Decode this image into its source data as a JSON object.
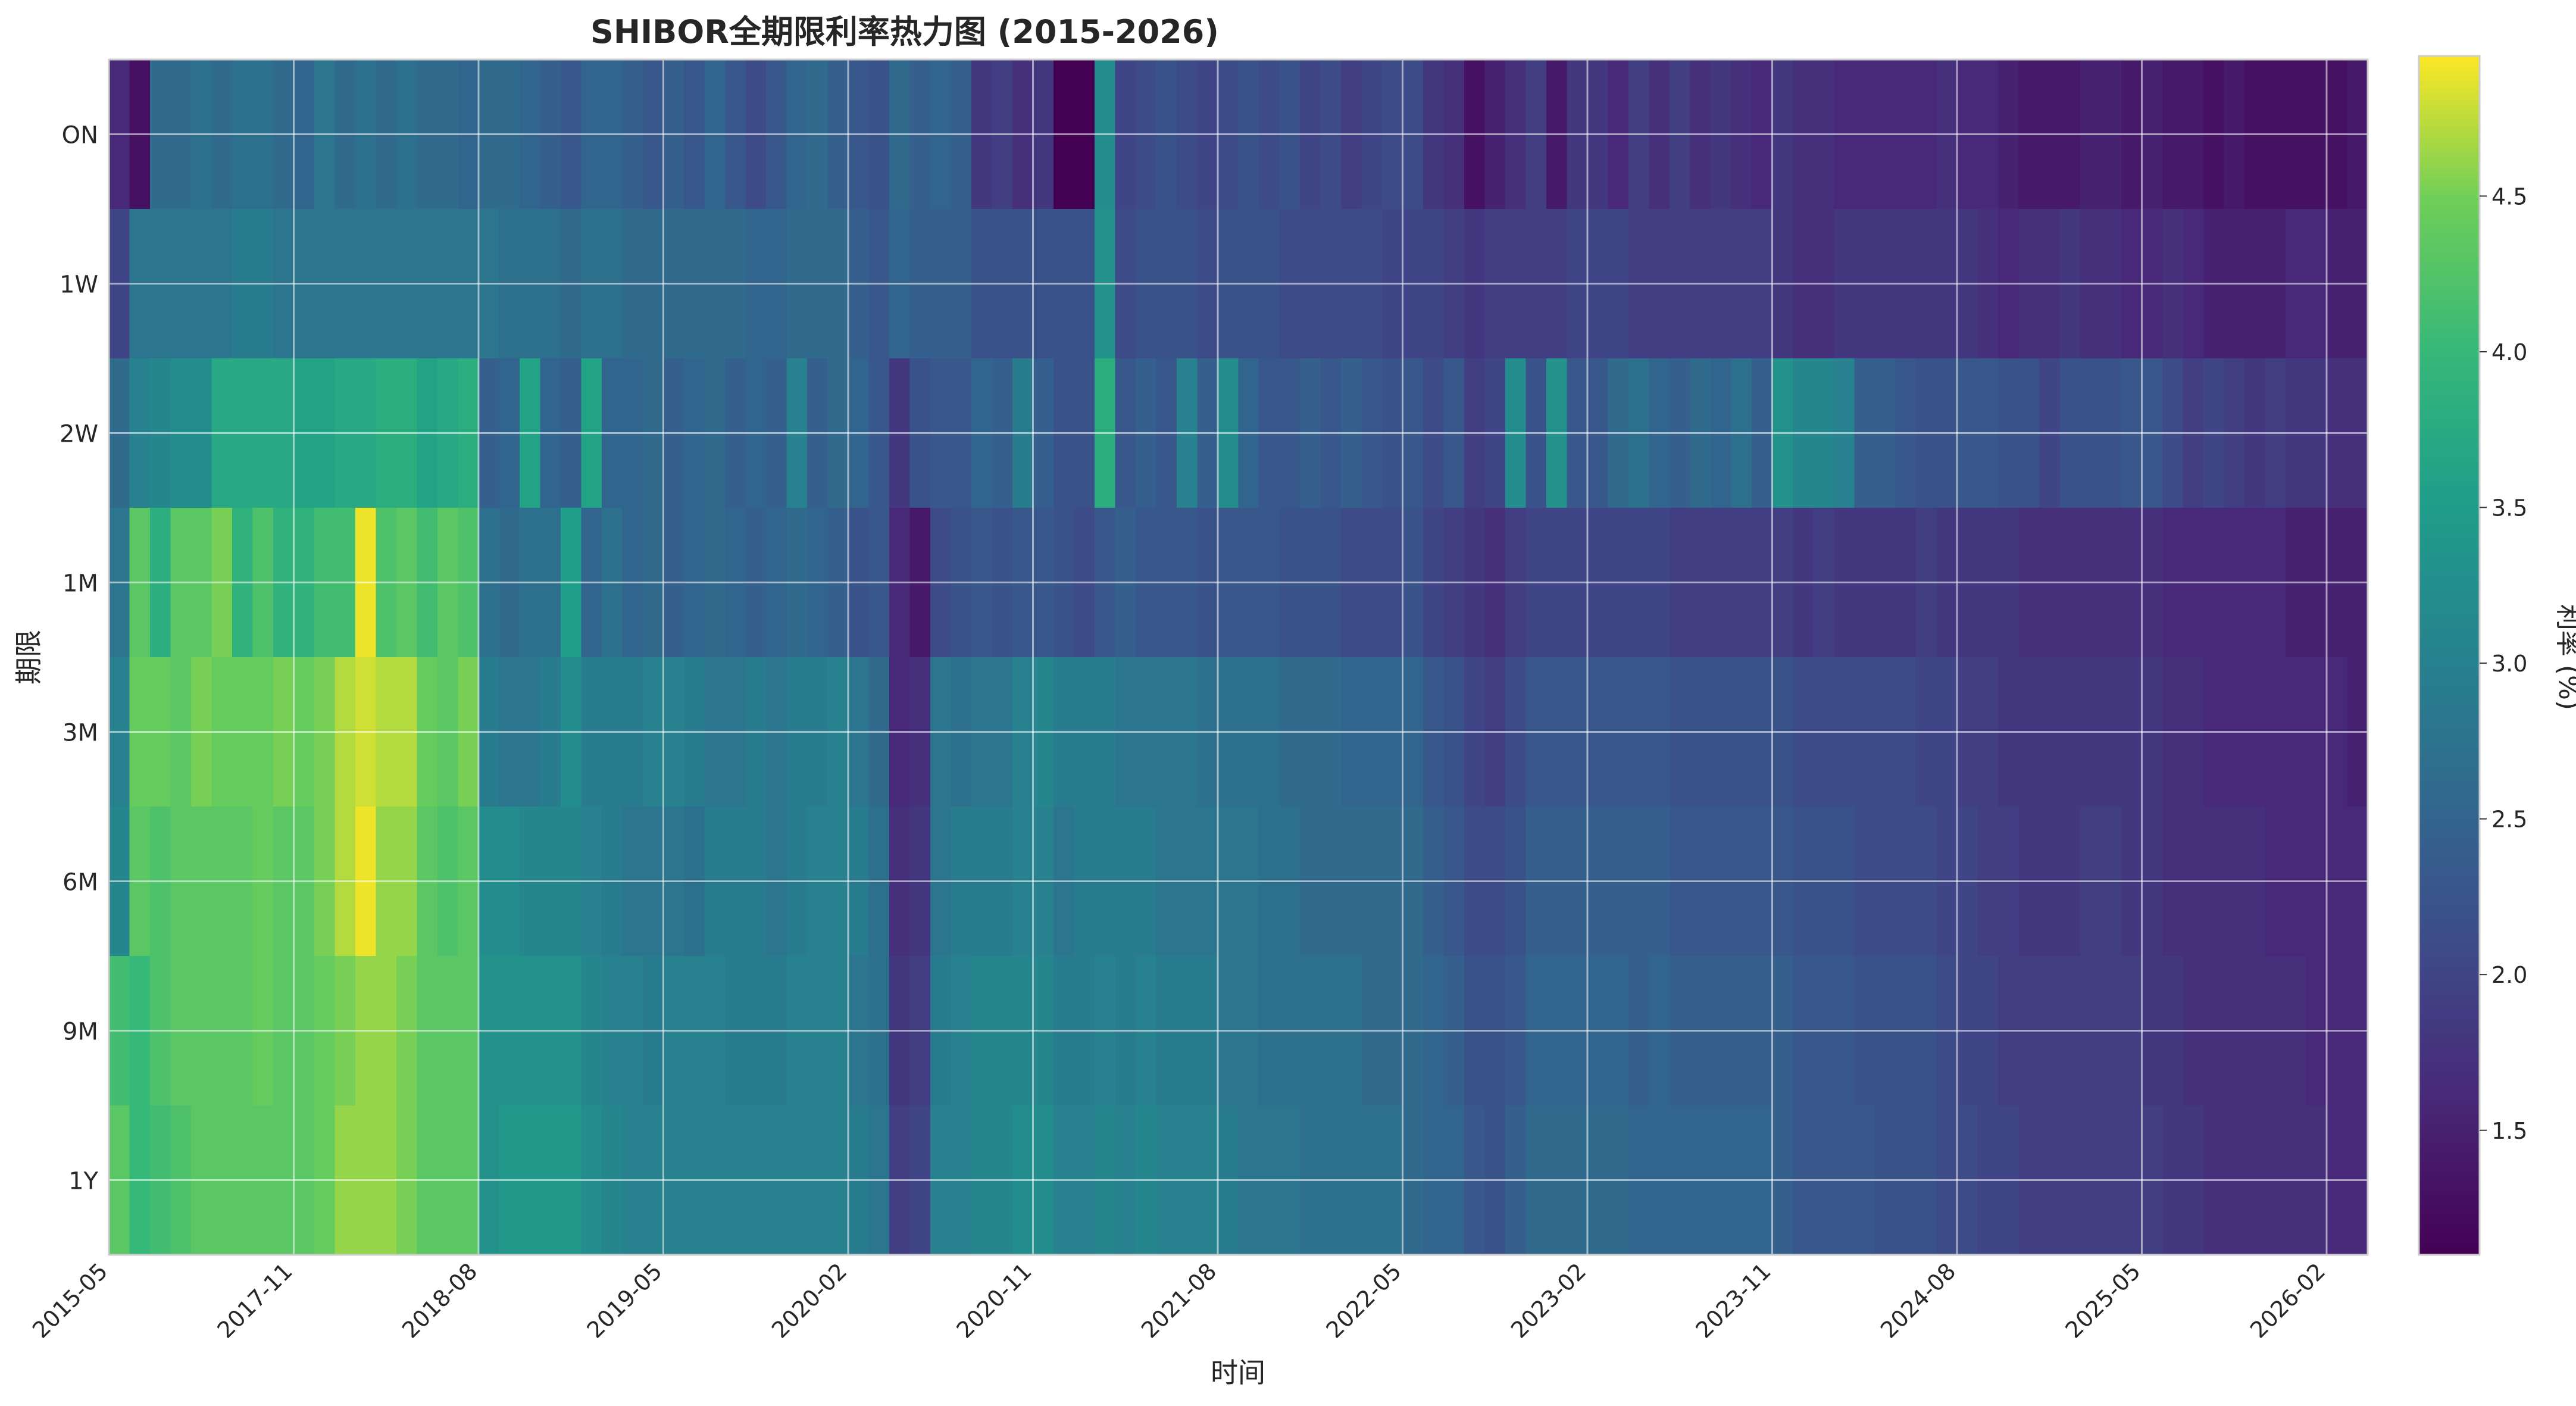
{
  "chart_data": {
    "type": "heatmap",
    "title": "SHIBOR全期限利率热力图 (2015-2026)",
    "xlabel": "时间",
    "ylabel": "期限",
    "colorbar": {
      "label": "利率 (%)",
      "range": [
        1.1,
        4.95
      ],
      "ticks": [
        1.5,
        2.0,
        2.5,
        3.0,
        3.5,
        4.0,
        4.5
      ],
      "colormap": "viridis"
    },
    "tenors": [
      "ON",
      "1W",
      "2W",
      "1M",
      "3M",
      "6M",
      "9M",
      "1Y"
    ],
    "x_tick_labels": [
      "2015-05",
      "2017-11",
      "2018-08",
      "2019-05",
      "2020-02",
      "2020-11",
      "2021-08",
      "2022-05",
      "2023-02",
      "2023-11",
      "2024-08",
      "2025-05",
      "2026-02"
    ],
    "x_tick_columns": [
      0,
      9,
      18,
      27,
      36,
      45,
      54,
      63,
      72,
      81,
      90,
      99,
      108
    ],
    "column_count": 110,
    "grid": true,
    "legend": "none",
    "series": [
      {
        "name": "ON",
        "values": [
          1.6,
          1.3,
          2.6,
          2.6,
          2.7,
          2.6,
          2.7,
          2.7,
          2.6,
          2.5,
          2.8,
          2.6,
          2.7,
          2.6,
          2.7,
          2.6,
          2.6,
          2.5,
          2.6,
          2.6,
          2.5,
          2.4,
          2.3,
          2.5,
          2.5,
          2.4,
          2.3,
          2.4,
          2.3,
          2.5,
          2.3,
          2.1,
          2.3,
          2.5,
          2.6,
          2.4,
          2.3,
          2.2,
          2.6,
          2.4,
          2.5,
          2.4,
          1.8,
          1.9,
          1.7,
          1.8,
          1.1,
          1.1,
          3.2,
          2.0,
          2.1,
          2.2,
          2.1,
          2.0,
          2.1,
          2.2,
          2.1,
          2.2,
          2.0,
          2.1,
          1.9,
          2.0,
          2.1,
          2.1,
          1.8,
          1.7,
          1.3,
          1.5,
          1.7,
          1.9,
          1.4,
          1.8,
          1.8,
          1.6,
          1.9,
          1.7,
          1.9,
          1.7,
          1.8,
          1.7,
          1.6,
          1.8,
          1.7,
          1.7,
          1.6,
          1.6,
          1.6,
          1.6,
          1.6,
          1.7,
          1.6,
          1.6,
          1.5,
          1.4,
          1.4,
          1.4,
          1.5,
          1.5,
          1.4,
          1.5,
          1.4,
          1.4,
          1.3,
          1.4,
          1.3,
          1.3,
          1.3,
          1.3,
          1.3,
          1.4
        ]
      },
      {
        "name": "1W",
        "values": [
          2.0,
          2.8,
          2.8,
          2.8,
          2.8,
          2.8,
          2.9,
          2.9,
          2.8,
          2.8,
          2.8,
          2.8,
          2.8,
          2.8,
          2.8,
          2.8,
          2.8,
          2.8,
          2.8,
          2.7,
          2.7,
          2.7,
          2.6,
          2.7,
          2.7,
          2.6,
          2.6,
          2.6,
          2.6,
          2.6,
          2.6,
          2.5,
          2.5,
          2.6,
          2.6,
          2.6,
          2.4,
          2.3,
          2.5,
          2.4,
          2.4,
          2.4,
          2.2,
          2.2,
          2.2,
          2.2,
          2.2,
          2.2,
          3.3,
          2.1,
          2.2,
          2.2,
          2.2,
          2.1,
          2.2,
          2.2,
          2.2,
          2.1,
          2.1,
          2.1,
          2.1,
          2.1,
          2.0,
          2.0,
          2.0,
          1.9,
          1.8,
          1.9,
          1.9,
          1.9,
          1.9,
          2.0,
          2.0,
          2.0,
          1.9,
          1.9,
          1.9,
          1.9,
          1.9,
          1.9,
          1.9,
          1.8,
          1.7,
          1.7,
          1.8,
          1.8,
          1.8,
          1.8,
          1.8,
          1.8,
          1.8,
          1.7,
          1.6,
          1.7,
          1.7,
          1.8,
          1.7,
          1.7,
          1.6,
          1.6,
          1.7,
          1.6,
          1.5,
          1.5,
          1.5,
          1.5,
          1.6,
          1.6,
          1.5,
          1.5
        ]
      },
      {
        "name": "2W",
        "values": [
          2.6,
          3.0,
          3.1,
          3.2,
          3.2,
          3.7,
          3.7,
          3.7,
          3.7,
          3.6,
          3.6,
          3.7,
          3.7,
          3.8,
          3.8,
          3.6,
          3.7,
          3.8,
          2.4,
          2.5,
          3.6,
          2.5,
          2.4,
          3.6,
          2.5,
          2.5,
          2.6,
          2.4,
          2.5,
          2.6,
          2.4,
          2.5,
          2.4,
          3.0,
          2.4,
          2.6,
          2.5,
          2.3,
          1.8,
          2.2,
          2.3,
          2.3,
          2.5,
          2.4,
          2.9,
          2.4,
          2.2,
          2.2,
          3.8,
          2.3,
          2.4,
          2.3,
          3.0,
          2.4,
          3.2,
          2.5,
          2.3,
          2.3,
          2.4,
          2.3,
          2.4,
          2.3,
          2.2,
          2.3,
          2.1,
          2.3,
          1.9,
          2.0,
          3.2,
          2.2,
          3.3,
          2.3,
          2.3,
          2.6,
          2.7,
          2.5,
          2.4,
          2.6,
          2.5,
          2.7,
          2.4,
          3.3,
          3.1,
          3.1,
          3.0,
          2.4,
          2.4,
          2.3,
          2.2,
          2.2,
          2.3,
          2.3,
          2.2,
          2.2,
          2.0,
          2.2,
          2.2,
          2.2,
          2.3,
          2.3,
          2.1,
          1.9,
          2.0,
          1.9,
          1.8,
          1.9,
          1.8,
          1.8,
          1.7,
          1.7
        ]
      },
      {
        "name": "1M",
        "values": [
          2.8,
          4.3,
          3.8,
          4.3,
          4.3,
          4.5,
          3.9,
          4.2,
          3.9,
          3.9,
          4.1,
          4.1,
          4.9,
          4.2,
          4.3,
          4.1,
          4.3,
          4.2,
          2.7,
          2.6,
          2.7,
          2.7,
          3.5,
          2.5,
          2.7,
          2.5,
          2.6,
          2.4,
          2.5,
          2.6,
          2.5,
          2.4,
          2.5,
          2.6,
          2.5,
          2.4,
          2.2,
          2.3,
          1.6,
          1.4,
          2.1,
          2.2,
          2.3,
          2.2,
          2.3,
          2.3,
          2.2,
          2.1,
          2.3,
          2.4,
          2.3,
          2.3,
          2.3,
          2.2,
          2.3,
          2.3,
          2.3,
          2.2,
          2.2,
          2.2,
          2.1,
          2.1,
          2.1,
          2.2,
          2.0,
          1.9,
          1.8,
          1.7,
          1.9,
          2.0,
          2.0,
          2.0,
          2.0,
          2.0,
          2.0,
          2.0,
          1.9,
          1.9,
          1.9,
          1.9,
          1.9,
          1.9,
          1.8,
          1.9,
          1.8,
          1.8,
          1.8,
          1.8,
          1.9,
          1.8,
          1.8,
          1.8,
          1.8,
          1.7,
          1.7,
          1.7,
          1.7,
          1.7,
          1.7,
          1.7,
          1.6,
          1.6,
          1.6,
          1.6,
          1.6,
          1.6,
          1.5,
          1.5,
          1.5,
          1.5
        ]
      },
      {
        "name": "3M",
        "values": [
          3.0,
          4.4,
          4.4,
          4.3,
          4.5,
          4.4,
          4.4,
          4.4,
          4.5,
          4.4,
          4.5,
          4.7,
          4.8,
          4.7,
          4.7,
          4.4,
          4.3,
          4.5,
          2.9,
          2.8,
          2.8,
          2.9,
          3.2,
          2.9,
          2.9,
          2.9,
          3.0,
          3.0,
          2.9,
          2.8,
          2.8,
          2.9,
          2.8,
          2.9,
          2.9,
          3.0,
          2.8,
          2.6,
          1.6,
          1.7,
          2.8,
          2.7,
          2.8,
          2.8,
          3.0,
          3.1,
          2.9,
          2.9,
          2.9,
          2.8,
          2.8,
          2.8,
          2.8,
          2.7,
          2.7,
          2.7,
          2.7,
          2.6,
          2.6,
          2.6,
          2.5,
          2.5,
          2.5,
          2.5,
          2.3,
          2.2,
          2.0,
          1.9,
          2.1,
          2.3,
          2.3,
          2.3,
          2.3,
          2.3,
          2.3,
          2.3,
          2.2,
          2.2,
          2.2,
          2.2,
          2.2,
          2.2,
          2.1,
          2.1,
          2.1,
          2.1,
          2.1,
          2.1,
          2.0,
          2.0,
          1.9,
          1.9,
          1.8,
          1.8,
          1.8,
          1.8,
          1.8,
          1.8,
          1.8,
          1.8,
          1.7,
          1.7,
          1.6,
          1.6,
          1.6,
          1.6,
          1.6,
          1.6,
          1.6,
          1.5
        ]
      },
      {
        "name": "6M",
        "values": [
          3.1,
          4.3,
          4.2,
          4.3,
          4.3,
          4.3,
          4.3,
          4.4,
          4.3,
          4.3,
          4.5,
          4.7,
          4.9,
          4.6,
          4.6,
          4.3,
          4.2,
          4.3,
          3.2,
          3.2,
          3.1,
          3.1,
          3.1,
          3.0,
          2.9,
          2.8,
          2.8,
          2.8,
          2.7,
          2.9,
          2.9,
          2.9,
          2.8,
          2.9,
          3.0,
          3.0,
          2.9,
          2.7,
          1.7,
          1.8,
          2.8,
          2.9,
          2.9,
          2.9,
          3.0,
          3.0,
          2.8,
          2.9,
          2.9,
          2.9,
          2.9,
          2.8,
          2.8,
          2.8,
          2.8,
          2.8,
          2.7,
          2.7,
          2.6,
          2.6,
          2.6,
          2.6,
          2.6,
          2.6,
          2.4,
          2.3,
          2.1,
          2.1,
          2.2,
          2.4,
          2.4,
          2.4,
          2.4,
          2.4,
          2.4,
          2.4,
          2.3,
          2.3,
          2.3,
          2.3,
          2.3,
          2.3,
          2.2,
          2.2,
          2.2,
          2.1,
          2.1,
          2.1,
          2.1,
          2.0,
          2.0,
          1.9,
          1.9,
          1.8,
          1.8,
          1.8,
          1.9,
          1.9,
          1.8,
          1.8,
          1.7,
          1.7,
          1.7,
          1.7,
          1.7,
          1.6,
          1.6,
          1.6,
          1.6,
          1.6
        ]
      },
      {
        "name": "9M",
        "values": [
          4.1,
          4.0,
          4.2,
          4.3,
          4.3,
          4.3,
          4.3,
          4.4,
          4.3,
          4.3,
          4.4,
          4.5,
          4.6,
          4.6,
          4.5,
          4.3,
          4.3,
          4.3,
          3.3,
          3.3,
          3.3,
          3.3,
          3.3,
          3.1,
          3.0,
          3.0,
          2.9,
          3.0,
          3.0,
          3.0,
          2.9,
          2.9,
          2.9,
          3.0,
          3.0,
          3.0,
          2.8,
          2.7,
          1.8,
          1.9,
          2.9,
          3.0,
          3.1,
          3.1,
          3.1,
          3.1,
          2.9,
          2.9,
          3.0,
          2.9,
          3.0,
          2.9,
          2.9,
          2.9,
          2.8,
          2.8,
          2.7,
          2.7,
          2.7,
          2.7,
          2.7,
          2.6,
          2.6,
          2.6,
          2.5,
          2.4,
          2.2,
          2.2,
          2.3,
          2.5,
          2.5,
          2.5,
          2.5,
          2.5,
          2.4,
          2.5,
          2.4,
          2.4,
          2.4,
          2.4,
          2.4,
          2.4,
          2.3,
          2.3,
          2.3,
          2.2,
          2.2,
          2.2,
          2.2,
          2.1,
          2.0,
          2.0,
          1.9,
          1.9,
          1.9,
          1.9,
          1.9,
          1.9,
          1.9,
          1.8,
          1.8,
          1.7,
          1.7,
          1.7,
          1.7,
          1.7,
          1.7,
          1.6,
          1.6,
          1.6
        ]
      },
      {
        "name": "1Y",
        "values": [
          4.3,
          4.0,
          4.1,
          4.2,
          4.3,
          4.3,
          4.3,
          4.3,
          4.3,
          4.3,
          4.4,
          4.6,
          4.6,
          4.6,
          4.5,
          4.3,
          4.3,
          4.3,
          3.3,
          3.4,
          3.4,
          3.4,
          3.4,
          3.2,
          3.1,
          3.0,
          3.0,
          3.0,
          3.0,
          3.0,
          3.0,
          3.0,
          3.0,
          3.0,
          3.0,
          3.0,
          2.9,
          2.8,
          1.9,
          2.0,
          3.0,
          3.0,
          3.1,
          3.1,
          3.2,
          3.2,
          3.0,
          3.0,
          3.1,
          3.0,
          3.1,
          3.0,
          3.0,
          3.0,
          2.9,
          2.8,
          2.8,
          2.8,
          2.7,
          2.7,
          2.7,
          2.7,
          2.7,
          2.6,
          2.5,
          2.5,
          2.3,
          2.2,
          2.4,
          2.6,
          2.6,
          2.6,
          2.6,
          2.6,
          2.5,
          2.5,
          2.5,
          2.5,
          2.5,
          2.5,
          2.5,
          2.4,
          2.3,
          2.3,
          2.3,
          2.3,
          2.2,
          2.2,
          2.2,
          2.1,
          2.1,
          2.0,
          2.0,
          1.9,
          1.9,
          1.9,
          1.9,
          1.9,
          1.9,
          1.9,
          1.8,
          1.8,
          1.7,
          1.7,
          1.7,
          1.7,
          1.7,
          1.7,
          1.6,
          1.6
        ]
      }
    ]
  }
}
